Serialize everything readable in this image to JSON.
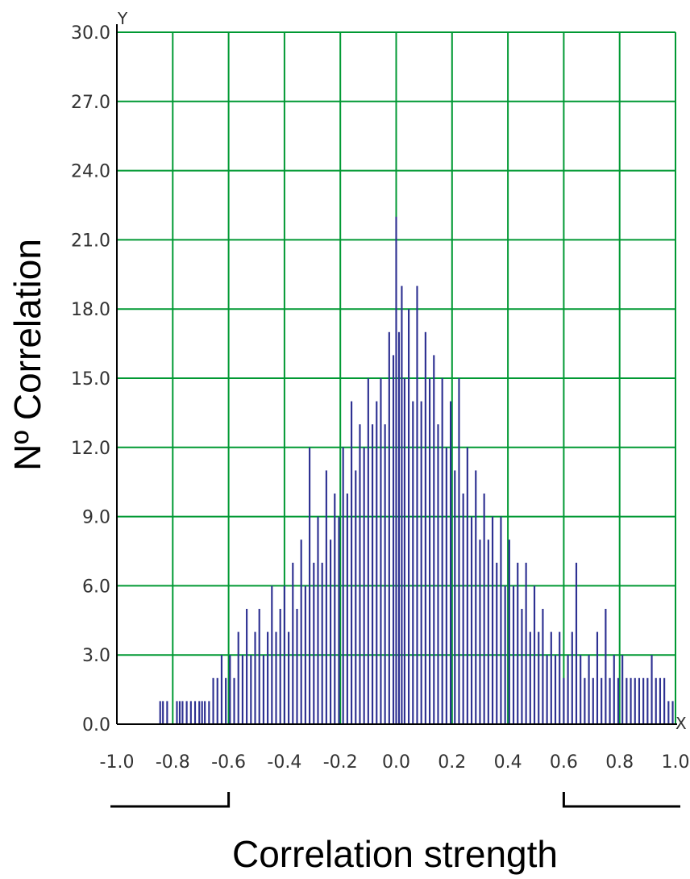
{
  "colors": {
    "bar": "#2e3192",
    "grid": "#009933",
    "axis": "#000000",
    "bracket": "#000000"
  },
  "chart_data": {
    "type": "bar",
    "xlabel": "Correlation strength",
    "ylabel": "Nº Correlation",
    "x_axis_letter": "X",
    "y_axis_letter": "Y",
    "xlim": [
      -1.0,
      1.0
    ],
    "ylim": [
      0.0,
      30.0
    ],
    "grid": true,
    "x_ticks": [
      "-1.0",
      "-0.8",
      "-0.6",
      "-0.4",
      "-0.2",
      "0.0",
      "0.2",
      "0.4",
      "0.6",
      "0.8",
      "1.0"
    ],
    "y_ticks": [
      "0.0",
      "3.0",
      "6.0",
      "9.0",
      "12.0",
      "15.0",
      "18.0",
      "21.0",
      "24.0",
      "27.0",
      "30.0"
    ],
    "bin_width": 0.005,
    "bins": [
      {
        "x": -0.845,
        "y": 1
      },
      {
        "x": -0.835,
        "y": 1
      },
      {
        "x": -0.82,
        "y": 1
      },
      {
        "x": -0.785,
        "y": 1
      },
      {
        "x": -0.775,
        "y": 1
      },
      {
        "x": -0.765,
        "y": 1
      },
      {
        "x": -0.75,
        "y": 1
      },
      {
        "x": -0.735,
        "y": 1
      },
      {
        "x": -0.72,
        "y": 1
      },
      {
        "x": -0.705,
        "y": 1
      },
      {
        "x": -0.695,
        "y": 1
      },
      {
        "x": -0.685,
        "y": 1
      },
      {
        "x": -0.67,
        "y": 1
      },
      {
        "x": -0.655,
        "y": 2
      },
      {
        "x": -0.64,
        "y": 2
      },
      {
        "x": -0.625,
        "y": 3
      },
      {
        "x": -0.61,
        "y": 2
      },
      {
        "x": -0.595,
        "y": 3
      },
      {
        "x": -0.58,
        "y": 2
      },
      {
        "x": -0.565,
        "y": 4
      },
      {
        "x": -0.55,
        "y": 3
      },
      {
        "x": -0.535,
        "y": 5
      },
      {
        "x": -0.52,
        "y": 3
      },
      {
        "x": -0.505,
        "y": 4
      },
      {
        "x": -0.49,
        "y": 5
      },
      {
        "x": -0.475,
        "y": 3
      },
      {
        "x": -0.46,
        "y": 4
      },
      {
        "x": -0.445,
        "y": 6
      },
      {
        "x": -0.43,
        "y": 4
      },
      {
        "x": -0.415,
        "y": 5
      },
      {
        "x": -0.4,
        "y": 6
      },
      {
        "x": -0.385,
        "y": 4
      },
      {
        "x": -0.37,
        "y": 7
      },
      {
        "x": -0.355,
        "y": 5
      },
      {
        "x": -0.34,
        "y": 8
      },
      {
        "x": -0.325,
        "y": 6
      },
      {
        "x": -0.31,
        "y": 12
      },
      {
        "x": -0.295,
        "y": 7
      },
      {
        "x": -0.28,
        "y": 9
      },
      {
        "x": -0.265,
        "y": 7
      },
      {
        "x": -0.25,
        "y": 11
      },
      {
        "x": -0.235,
        "y": 8
      },
      {
        "x": -0.22,
        "y": 10
      },
      {
        "x": -0.205,
        "y": 9
      },
      {
        "x": -0.19,
        "y": 12
      },
      {
        "x": -0.175,
        "y": 10
      },
      {
        "x": -0.16,
        "y": 14
      },
      {
        "x": -0.145,
        "y": 11
      },
      {
        "x": -0.13,
        "y": 13
      },
      {
        "x": -0.115,
        "y": 12
      },
      {
        "x": -0.1,
        "y": 15
      },
      {
        "x": -0.085,
        "y": 13
      },
      {
        "x": -0.07,
        "y": 14
      },
      {
        "x": -0.055,
        "y": 15
      },
      {
        "x": -0.04,
        "y": 13
      },
      {
        "x": -0.025,
        "y": 17
      },
      {
        "x": -0.01,
        "y": 16
      },
      {
        "x": 0.0,
        "y": 22
      },
      {
        "x": 0.01,
        "y": 17
      },
      {
        "x": 0.02,
        "y": 19
      },
      {
        "x": 0.03,
        "y": 15
      },
      {
        "x": 0.045,
        "y": 18
      },
      {
        "x": 0.06,
        "y": 14
      },
      {
        "x": 0.075,
        "y": 19
      },
      {
        "x": 0.09,
        "y": 14
      },
      {
        "x": 0.105,
        "y": 17
      },
      {
        "x": 0.12,
        "y": 15
      },
      {
        "x": 0.135,
        "y": 16
      },
      {
        "x": 0.15,
        "y": 13
      },
      {
        "x": 0.165,
        "y": 15
      },
      {
        "x": 0.18,
        "y": 12
      },
      {
        "x": 0.195,
        "y": 14
      },
      {
        "x": 0.21,
        "y": 11
      },
      {
        "x": 0.225,
        "y": 15
      },
      {
        "x": 0.24,
        "y": 10
      },
      {
        "x": 0.255,
        "y": 12
      },
      {
        "x": 0.27,
        "y": 9
      },
      {
        "x": 0.285,
        "y": 11
      },
      {
        "x": 0.3,
        "y": 8
      },
      {
        "x": 0.315,
        "y": 10
      },
      {
        "x": 0.33,
        "y": 8
      },
      {
        "x": 0.345,
        "y": 9
      },
      {
        "x": 0.36,
        "y": 7
      },
      {
        "x": 0.375,
        "y": 9
      },
      {
        "x": 0.39,
        "y": 6
      },
      {
        "x": 0.405,
        "y": 8
      },
      {
        "x": 0.42,
        "y": 6
      },
      {
        "x": 0.435,
        "y": 7
      },
      {
        "x": 0.45,
        "y": 5
      },
      {
        "x": 0.465,
        "y": 7
      },
      {
        "x": 0.48,
        "y": 4
      },
      {
        "x": 0.495,
        "y": 6
      },
      {
        "x": 0.51,
        "y": 4
      },
      {
        "x": 0.525,
        "y": 5
      },
      {
        "x": 0.54,
        "y": 3
      },
      {
        "x": 0.555,
        "y": 4
      },
      {
        "x": 0.57,
        "y": 3
      },
      {
        "x": 0.585,
        "y": 4
      },
      {
        "x": 0.6,
        "y": 2
      },
      {
        "x": 0.615,
        "y": 3
      },
      {
        "x": 0.63,
        "y": 4
      },
      {
        "x": 0.645,
        "y": 7
      },
      {
        "x": 0.66,
        "y": 3
      },
      {
        "x": 0.675,
        "y": 2
      },
      {
        "x": 0.69,
        "y": 3
      },
      {
        "x": 0.705,
        "y": 2
      },
      {
        "x": 0.72,
        "y": 4
      },
      {
        "x": 0.735,
        "y": 2
      },
      {
        "x": 0.75,
        "y": 5
      },
      {
        "x": 0.765,
        "y": 2
      },
      {
        "x": 0.78,
        "y": 3
      },
      {
        "x": 0.795,
        "y": 2
      },
      {
        "x": 0.81,
        "y": 3
      },
      {
        "x": 0.825,
        "y": 2
      },
      {
        "x": 0.84,
        "y": 2
      },
      {
        "x": 0.855,
        "y": 2
      },
      {
        "x": 0.87,
        "y": 2
      },
      {
        "x": 0.885,
        "y": 2
      },
      {
        "x": 0.9,
        "y": 2
      },
      {
        "x": 0.915,
        "y": 3
      },
      {
        "x": 0.93,
        "y": 2
      },
      {
        "x": 0.945,
        "y": 2
      },
      {
        "x": 0.96,
        "y": 2
      },
      {
        "x": 0.975,
        "y": 1
      },
      {
        "x": 0.99,
        "y": 1
      }
    ],
    "brackets": [
      {
        "from": -1.0,
        "to": -0.6
      },
      {
        "from": 0.6,
        "to": 1.0
      }
    ]
  }
}
